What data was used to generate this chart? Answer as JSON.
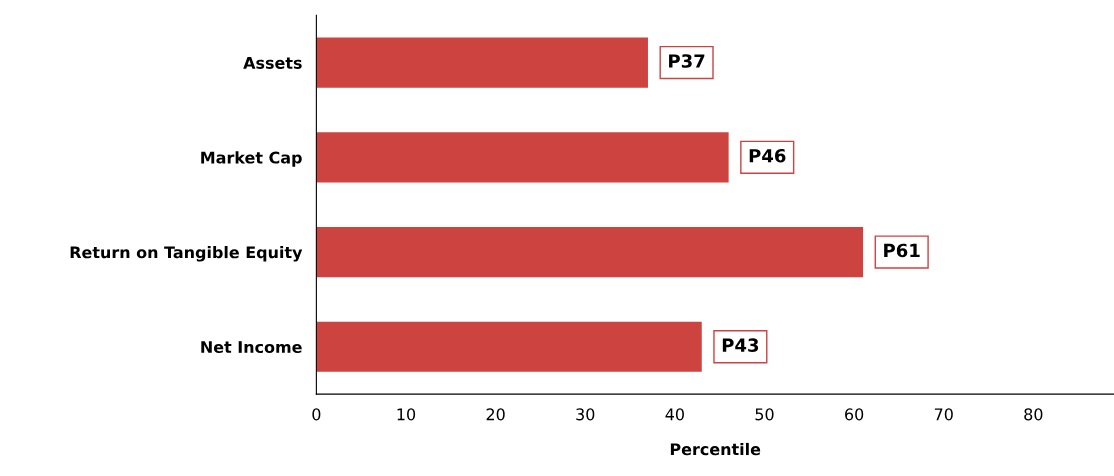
{
  "chart_data": {
    "type": "bar",
    "orientation": "horizontal",
    "xlabel": "Percentile",
    "categories": [
      "Assets",
      "Market Cap",
      "Return on Tangible Equity",
      "Net Income"
    ],
    "values": [
      37,
      46,
      61,
      43
    ],
    "color": "#cc4340",
    "value_labels": [
      "P37",
      "P46",
      "P61",
      "P43"
    ],
    "xlim": [
      0,
      89
    ],
    "xticks": [
      0,
      10,
      20,
      30,
      40,
      50,
      60,
      70,
      80
    ],
    "grid": false,
    "legend": false
  }
}
